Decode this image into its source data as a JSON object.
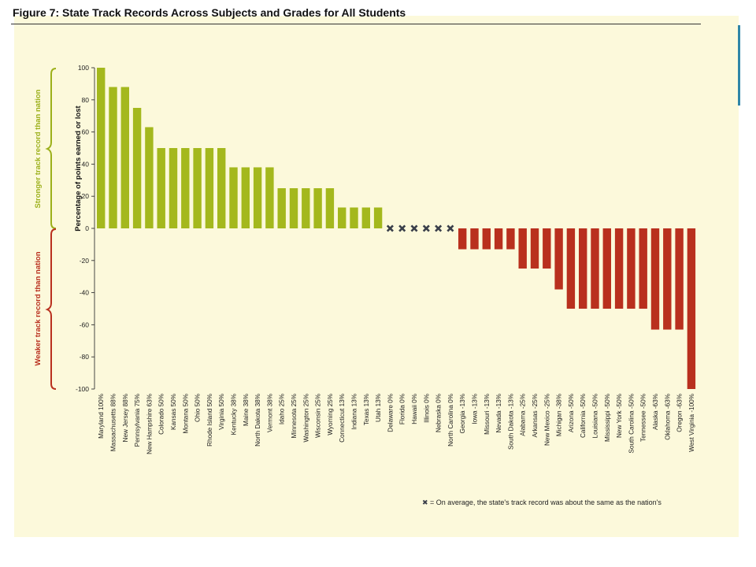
{
  "figure": {
    "title": "Figure 7: State Track Records Across Subjects and Grades for All Students",
    "footnote_marker": "✖",
    "footnote": " = On average, the state's track record was about the same as the nation's"
  },
  "colors": {
    "positive": "#a4b81d",
    "negative": "#b9301e",
    "same_marker": "#3a3f4a",
    "panel": "#fcf9db"
  },
  "brackets": {
    "upper": {
      "label": "Stronger track record than nation",
      "color": "#9cb01a"
    },
    "lower": {
      "label": "Weaker track record than nation",
      "color": "#b9301e"
    }
  },
  "chart_data": {
    "type": "bar",
    "title": "Figure 7: State Track Records Across Subjects and Grades for All Students",
    "ylabel": "Percentage of points earned or lost",
    "xlabel": "",
    "ylim": [
      -100,
      100
    ],
    "yticks": [
      100,
      80,
      60,
      40,
      20,
      0,
      -20,
      -40,
      -60,
      -80,
      -100
    ],
    "grid": false,
    "categories": [
      "Maryland",
      "Massachusetts",
      "New Jersey",
      "Pennsylvania",
      "New Hampshire",
      "Colorado",
      "Kansas",
      "Montana",
      "Ohio",
      "Rhode Island",
      "Virginia",
      "Kentucky",
      "Maine",
      "North Dakota",
      "Vermont",
      "Idaho",
      "Minnesota",
      "Washington",
      "Wisconsin",
      "Wyoming",
      "Connecticut",
      "Indiana",
      "Texas",
      "Utah",
      "Delaware",
      "Florida",
      "Hawaii",
      "Illinois",
      "Nebraska",
      "North Carolina",
      "Georgia",
      "Iowa",
      "Missouri",
      "Nevada",
      "South Dakota",
      "Alabama",
      "Arkansas",
      "New Mexico",
      "Michigan",
      "Arizona",
      "California",
      "Louisiana",
      "Mississippi",
      "New York",
      "South Carolina",
      "Tennessee",
      "Alaska",
      "Oklahoma",
      "Oregon",
      "West Virginia"
    ],
    "labels": [
      "Maryland 100%",
      "Massachusetts 88%",
      "New Jersey 88%",
      "Pennsylvania 75%",
      "New Hampshire 63%",
      "Colorado 50%",
      "Kansas 50%",
      "Montana 50%",
      "Ohio 50%",
      "Rhode Island 50%",
      "Virginia 50%",
      "Kentucky 38%",
      "Maine 38%",
      "North Dakota 38%",
      "Vermont 38%",
      "Idaho 25%",
      "Minnesota 25%",
      "Washington 25%",
      "Wisconsin 25%",
      "Wyoming 25%",
      "Connecticut 13%",
      "Indiana 13%",
      "Texas 13%",
      "Utah 13%",
      "Delaware 0%",
      "Florida 0%",
      "Hawaii 0%",
      "Illinois 0%",
      "Nebraska 0%",
      "North Carolina 0%",
      "Georgia -13%",
      "Iowa -13%",
      "Missouri -13%",
      "Nevada -13%",
      "South Dakota -13%",
      "Alabama -25%",
      "Arkansas -25%",
      "New Mexico -25%",
      "Michigan -38%",
      "Arizona -50%",
      "California -50%",
      "Louisiana -50%",
      "Mississippi -50%",
      "New York -50%",
      "South Carolina -50%",
      "Tennessee -50%",
      "Alaska -63%",
      "Oklahoma -63%",
      "Oregon -63%",
      "West Virginia -100%"
    ],
    "values": [
      100,
      88,
      88,
      75,
      63,
      50,
      50,
      50,
      50,
      50,
      50,
      38,
      38,
      38,
      38,
      25,
      25,
      25,
      25,
      25,
      13,
      13,
      13,
      13,
      0,
      0,
      0,
      0,
      0,
      0,
      -13,
      -13,
      -13,
      -13,
      -13,
      -25,
      -25,
      -25,
      -38,
      -50,
      -50,
      -50,
      -50,
      -50,
      -50,
      -50,
      -63,
      -63,
      -63,
      -100
    ],
    "same_as_nation": [
      "Delaware",
      "Florida",
      "Hawaii",
      "Illinois",
      "Nebraska",
      "North Carolina"
    ]
  }
}
